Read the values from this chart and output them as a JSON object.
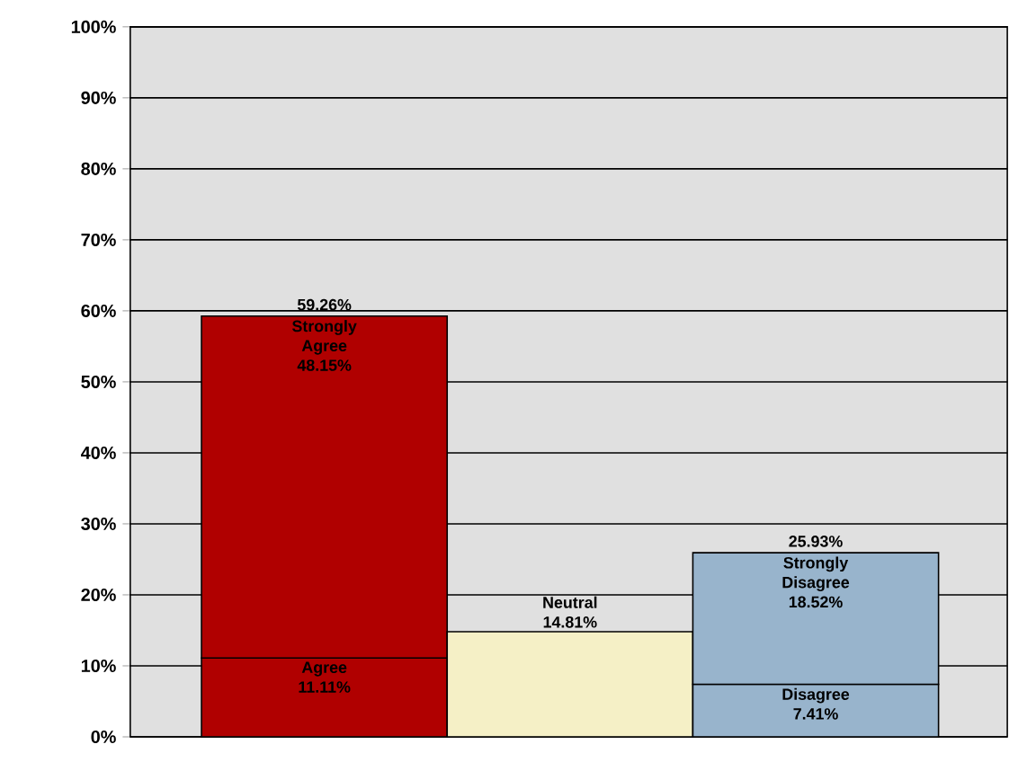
{
  "chart_data": {
    "type": "bar",
    "stacked": true,
    "categories": [
      null,
      null,
      null
    ],
    "series": [
      {
        "name": "Agree",
        "color": "#b00000",
        "values": [
          11.11,
          null,
          null
        ],
        "value_labels": [
          "11.11%",
          null,
          null
        ]
      },
      {
        "name": "Strongly Agree",
        "color": "#b00000",
        "values": [
          48.15,
          null,
          null
        ],
        "value_labels": [
          "48.15%",
          null,
          null
        ]
      },
      {
        "name": "Neutral",
        "color": "#f5f0c6",
        "values": [
          null,
          14.81,
          null
        ],
        "value_labels": [
          null,
          "14.81%",
          null
        ]
      },
      {
        "name": "Disagree",
        "color": "#98b4cc",
        "values": [
          null,
          null,
          7.41
        ],
        "value_labels": [
          null,
          null,
          "7.41%"
        ]
      },
      {
        "name": "Strongly Disagree",
        "color": "#98b4cc",
        "values": [
          null,
          null,
          18.52
        ],
        "value_labels": [
          null,
          null,
          "18.52%"
        ]
      }
    ],
    "totals": [
      "59.26%",
      null,
      "25.93%"
    ],
    "ylim": [
      0,
      100
    ],
    "yticks": [
      {
        "value": 0,
        "label": "0%"
      },
      {
        "value": 10,
        "label": "10%"
      },
      {
        "value": 20,
        "label": "20%"
      },
      {
        "value": 30,
        "label": "30%"
      },
      {
        "value": 40,
        "label": "40%"
      },
      {
        "value": 50,
        "label": "50%"
      },
      {
        "value": 60,
        "label": "60%"
      },
      {
        "value": 70,
        "label": "70%"
      },
      {
        "value": 80,
        "label": "80%"
      },
      {
        "value": 90,
        "label": "90%"
      },
      {
        "value": 100,
        "label": "100%"
      }
    ],
    "grid": "y"
  }
}
